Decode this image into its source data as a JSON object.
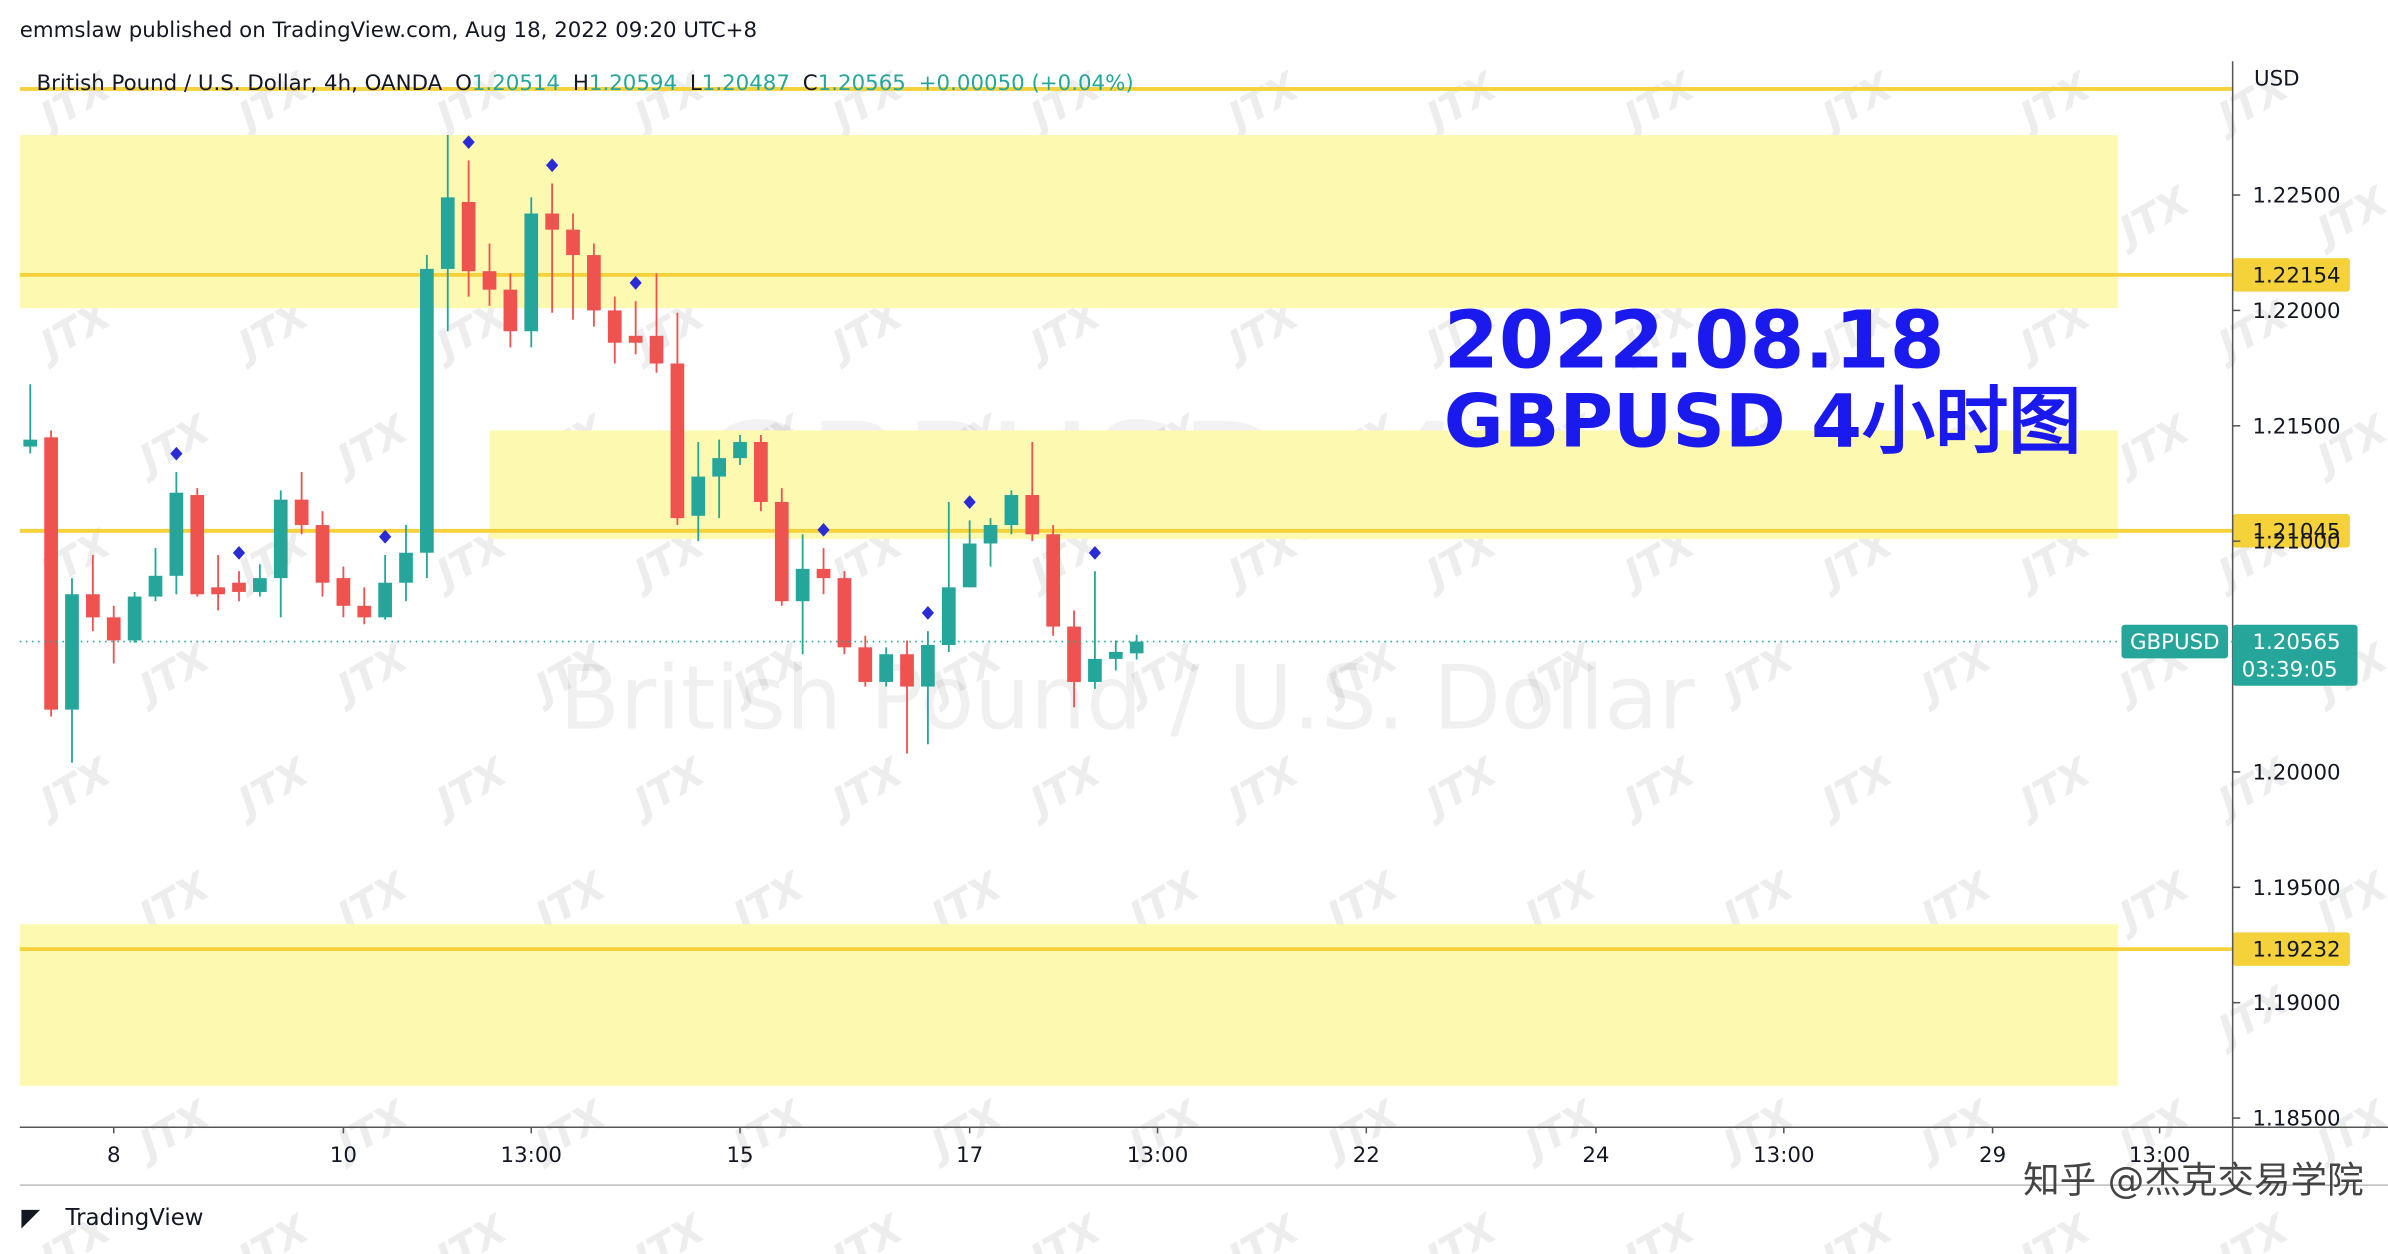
{
  "header": "emmslaw published on TradingView.com, Aug 18, 2022 09:20 UTC+8",
  "footer_brand": "TradingView",
  "credit": "知乎 @杰克交易学院",
  "logo_watermark": "JTX",
  "chart_data": {
    "type": "candlestick",
    "title": "2022.08.18",
    "subtitle": "GBPUSD 4小时图",
    "symbol_line": "British Pound / U.S. Dollar, 4h, OANDA",
    "ohlc_labels": [
      "O",
      "H",
      "L",
      "C"
    ],
    "change": "+0.00050 (+0.04%)",
    "currency": "USD",
    "ticker": "GBPUSD",
    "countdown": "03:39:05",
    "watermark_symbol": "GBPUSD, 4h",
    "watermark_name": "British Pound / U.S. Dollar",
    "up_color": "#26a69a",
    "down_color": "#ef5350",
    "open": [
      1.2141,
      1.2145,
      1.2027,
      1.2077,
      1.2067,
      1.2057,
      1.2076,
      1.2085,
      1.212,
      1.208,
      1.2082,
      1.2078,
      1.2084,
      1.2118,
      1.2107,
      1.2084,
      1.2072,
      1.2067,
      1.2082,
      1.2095,
      1.2218,
      1.2247,
      1.2217,
      1.2209,
      1.2191,
      1.2242,
      1.2235,
      1.2224,
      1.22,
      1.2189,
      1.2189,
      1.2177,
      1.2111,
      1.2128,
      1.2136,
      1.2143,
      1.2117,
      1.2074,
      1.2088,
      1.2084,
      1.2054,
      1.2039,
      1.2051,
      1.2037,
      1.2055,
      1.208,
      1.2099,
      1.2107,
      1.212,
      1.2103,
      1.2063,
      1.2039,
      1.2049,
      1.20514
    ],
    "high": [
      1.2168,
      1.2148,
      1.2084,
      1.2094,
      1.2072,
      1.2078,
      1.2097,
      1.213,
      1.2123,
      1.2094,
      1.2087,
      1.209,
      1.2122,
      1.213,
      1.2113,
      1.2089,
      1.208,
      1.2094,
      1.2107,
      1.2224,
      1.2276,
      1.2265,
      1.2229,
      1.2216,
      1.2249,
      1.2255,
      1.2242,
      1.2229,
      1.2206,
      1.2204,
      1.2216,
      1.2199,
      1.2143,
      1.2144,
      1.2146,
      1.2146,
      1.2123,
      1.2103,
      1.2097,
      1.2087,
      1.2059,
      1.2054,
      1.2057,
      1.2061,
      1.2117,
      1.2109,
      1.211,
      1.2122,
      1.2143,
      1.2107,
      1.207,
      1.2087,
      1.2057,
      1.20594
    ],
    "low": [
      1.2138,
      1.2024,
      1.2004,
      1.2061,
      1.2047,
      1.2056,
      1.2074,
      1.2077,
      1.2076,
      1.207,
      1.2074,
      1.2076,
      1.2067,
      1.2103,
      1.2076,
      1.2067,
      1.2064,
      1.2066,
      1.2074,
      1.2084,
      1.2191,
      1.2206,
      1.2202,
      1.2184,
      1.2184,
      1.2199,
      1.2196,
      1.2193,
      1.2177,
      1.2181,
      1.2173,
      1.2107,
      1.21,
      1.211,
      1.2133,
      1.2113,
      1.2072,
      1.2051,
      1.2077,
      1.2051,
      1.2037,
      1.2037,
      1.2008,
      1.2012,
      1.2052,
      1.208,
      1.2089,
      1.2103,
      1.21,
      1.2059,
      1.2028,
      1.2036,
      1.2044,
      1.20487
    ],
    "close": [
      1.2144,
      1.2027,
      1.2077,
      1.2067,
      1.2057,
      1.2076,
      1.2085,
      1.2121,
      1.2077,
      1.2077,
      1.2078,
      1.2084,
      1.2118,
      1.2107,
      1.2082,
      1.2072,
      1.2067,
      1.2082,
      1.2095,
      1.2218,
      1.2249,
      1.2217,
      1.2209,
      1.2191,
      1.2242,
      1.2235,
      1.2224,
      1.22,
      1.2186,
      1.2186,
      1.2177,
      1.211,
      1.2128,
      1.2136,
      1.2143,
      1.2117,
      1.2074,
      1.2088,
      1.2084,
      1.2054,
      1.2039,
      1.2051,
      1.2037,
      1.2055,
      1.208,
      1.2099,
      1.2107,
      1.212,
      1.2103,
      1.2063,
      1.2039,
      1.2049,
      1.2052,
      1.20565
    ],
    "ylim": [
      1.1846,
      1.2308
    ],
    "yticks": [
      {
        "value": 1.185,
        "label": "1.18500"
      },
      {
        "value": 1.19,
        "label": "1.19000"
      },
      {
        "value": 1.195,
        "label": "1.19500"
      },
      {
        "value": 1.2,
        "label": "1.20000"
      },
      {
        "value": 1.205,
        "label": "1.20500"
      },
      {
        "value": 1.21,
        "label": "1.21000"
      },
      {
        "value": 1.215,
        "label": "1.21500"
      },
      {
        "value": 1.22,
        "label": "1.22000"
      },
      {
        "value": 1.225,
        "label": "1.22500"
      }
    ],
    "xlim": [
      -0.5,
      105.5
    ],
    "xticks": [
      {
        "value": 4,
        "label": "8"
      },
      {
        "value": 15,
        "label": "10"
      },
      {
        "value": 24,
        "label": "13:00"
      },
      {
        "value": 34,
        "label": "15"
      },
      {
        "value": 45,
        "label": "17"
      },
      {
        "value": 54,
        "label": "13:00"
      },
      {
        "value": 64,
        "label": "22"
      },
      {
        "value": 75,
        "label": "24"
      },
      {
        "value": 84,
        "label": "13:00"
      },
      {
        "value": 94,
        "label": "29"
      },
      {
        "value": 102,
        "label": "13:00"
      }
    ],
    "price_lines": [
      1.22154,
      1.21045,
      1.19232
    ],
    "top_line": 1.2296,
    "line_color": "#f5d13a",
    "zones": [
      {
        "x": [
          -0.5,
          100
        ],
        "y": [
          1.2201,
          1.2276
        ]
      },
      {
        "x": [
          22,
          100
        ],
        "y": [
          1.2101,
          1.2148
        ]
      },
      {
        "x": [
          -0.5,
          100
        ],
        "y": [
          1.1864,
          1.1934
        ]
      }
    ],
    "zone_color": "#fdf9b0",
    "markers": [
      7,
      10,
      17,
      21,
      25,
      29,
      38,
      43,
      45,
      51
    ],
    "marker_color": "#2b2bd6",
    "annotation_color": "#1a1aee"
  }
}
